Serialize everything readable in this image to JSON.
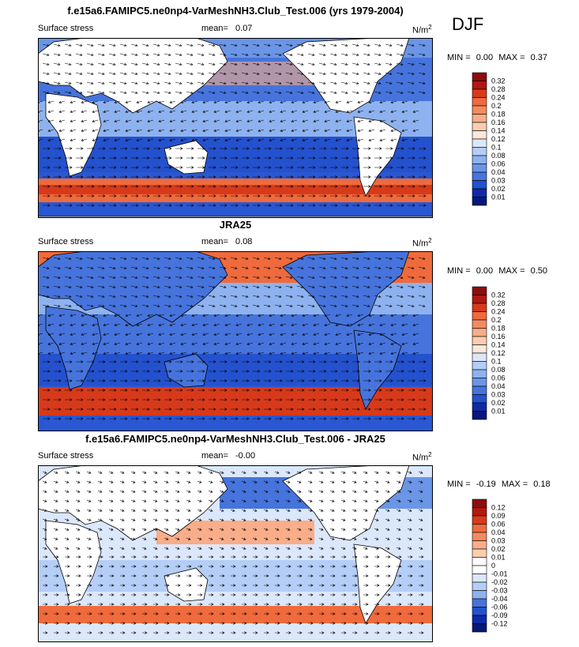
{
  "season": "DJF",
  "chart_data": [
    {
      "type": "heatmap",
      "title": "f.e15a6.FAMIPC5.ne0np4-VarMeshNH3.Club_Test.006 (yrs 1979-2004)",
      "left_label": "Surface stress",
      "mean_label": "mean=",
      "mean_value": "0.07",
      "units": "N/m",
      "units_exp": "2",
      "min_label": "MIN =",
      "min_value": "0.00",
      "max_label": "MAX =",
      "max_value": "0.37",
      "legend": {
        "levels": [
          "0.32",
          "0.28",
          "0.24",
          "0.2",
          "0.18",
          "0.16",
          "0.14",
          "0.12",
          "0.1",
          "0.08",
          "0.06",
          "0.04",
          "0.03",
          "0.02",
          "0.01"
        ],
        "colors": [
          "#8c0d0d",
          "#b2180f",
          "#d73a1b",
          "#ef6a3c",
          "#f58a60",
          "#f9ad88",
          "#fbcdb0",
          "#fde8d8",
          "#dbe7fb",
          "#b5cef7",
          "#8eb2ef",
          "#6b95e6",
          "#4674dc",
          "#2451cd",
          "#0f2aa8",
          "#071878"
        ]
      }
    },
    {
      "type": "heatmap",
      "title": "JRA25",
      "left_label": "Surface stress",
      "mean_label": "mean=",
      "mean_value": "0.08",
      "units": "N/m",
      "units_exp": "2",
      "min_label": "MIN =",
      "min_value": "0.00",
      "max_label": "MAX =",
      "max_value": "0.50",
      "legend": {
        "levels": [
          "0.32",
          "0.28",
          "0.24",
          "0.2",
          "0.18",
          "0.16",
          "0.14",
          "0.12",
          "0.1",
          "0.08",
          "0.06",
          "0.04",
          "0.03",
          "0.02",
          "0.01"
        ],
        "colors": [
          "#8c0d0d",
          "#b2180f",
          "#d73a1b",
          "#ef6a3c",
          "#f58a60",
          "#f9ad88",
          "#fbcdb0",
          "#fde8d8",
          "#dbe7fb",
          "#b5cef7",
          "#8eb2ef",
          "#6b95e6",
          "#4674dc",
          "#2451cd",
          "#0f2aa8",
          "#071878"
        ]
      }
    },
    {
      "type": "heatmap",
      "title": "f.e15a6.FAMIPC5.ne0np4-VarMeshNH3.Club_Test.006 - JRA25",
      "left_label": "Surface stress",
      "mean_label": "mean=",
      "mean_value": "-0.00",
      "units": "N/m",
      "units_exp": "2",
      "min_label": "MIN =",
      "min_value": "-0.19",
      "max_label": "MAX =",
      "max_value": "0.18",
      "legend": {
        "levels": [
          "0.12",
          "0.09",
          "0.06",
          "0.04",
          "0.03",
          "0.02",
          "0.01",
          "0",
          "-0.01",
          "-0.02",
          "-0.03",
          "-0.04",
          "-0.06",
          "-0.09",
          "-0.12"
        ],
        "colors": [
          "#8c0d0d",
          "#b2180f",
          "#d73a1b",
          "#ef6a3c",
          "#f58a60",
          "#f9ad88",
          "#fbcdb0",
          "#ffffff",
          "#ffffff",
          "#dbe7fb",
          "#b5cef7",
          "#8eb2ef",
          "#4674dc",
          "#2451cd",
          "#0f2aa8",
          "#071878"
        ]
      }
    }
  ]
}
